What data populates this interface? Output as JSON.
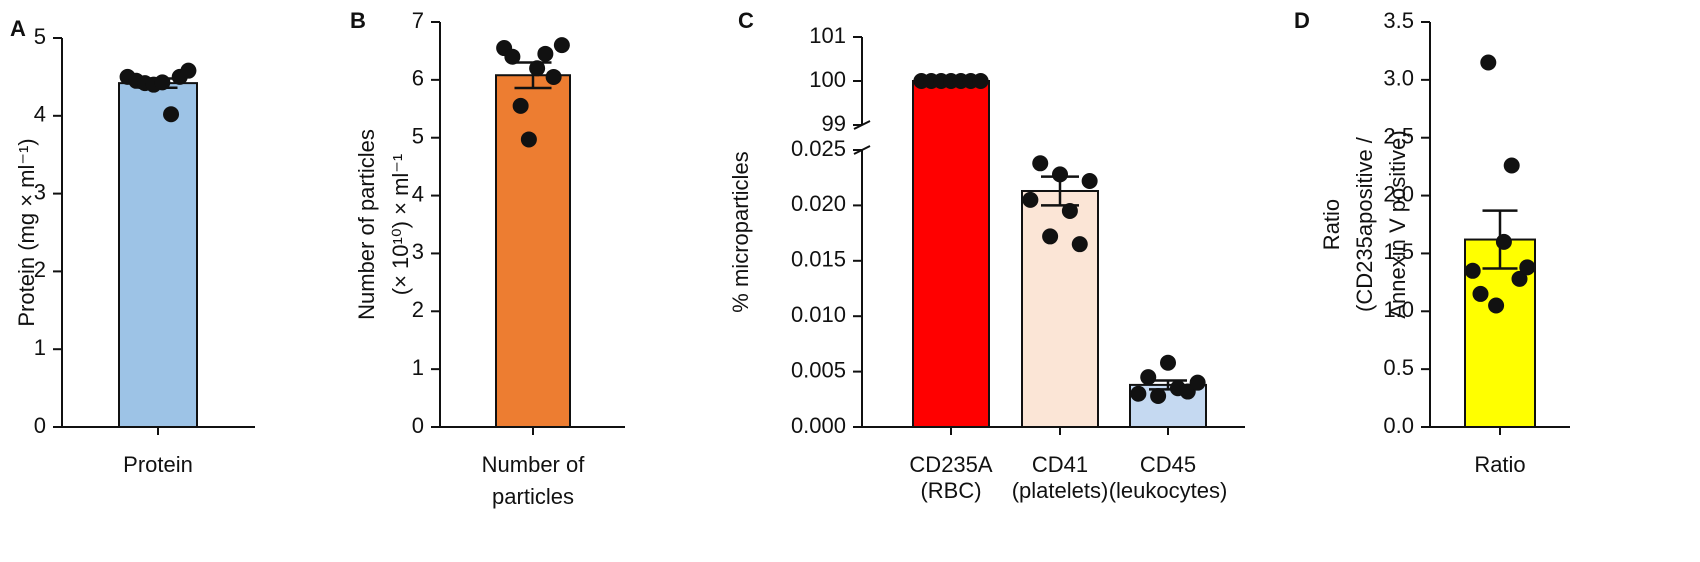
{
  "chart_data": [
    {
      "type": "bar",
      "panel": "A",
      "ylabel": [
        "Protein (mg × ml⁻¹)"
      ],
      "categories": [
        "Protein"
      ],
      "values": [
        4.42
      ],
      "errors": [
        0.06
      ],
      "points": [
        [
          4.5,
          4.45,
          4.42,
          4.4,
          4.43,
          4.02,
          4.5,
          4.58
        ]
      ],
      "colors": [
        "#9dc3e6"
      ],
      "ylim": [
        0,
        5
      ],
      "yticks": [
        0,
        1,
        2,
        3,
        4,
        5
      ]
    },
    {
      "type": "bar",
      "panel": "B",
      "ylabel": [
        "Number of particles",
        "(× 10¹⁰) × ml⁻¹"
      ],
      "categories": [
        "Number of particles"
      ],
      "values": [
        6.08
      ],
      "errors": [
        0.22
      ],
      "points": [
        [
          6.55,
          6.4,
          5.55,
          4.97,
          6.2,
          6.45,
          6.05,
          6.6
        ]
      ],
      "colors": [
        "#ed7d31"
      ],
      "ylim": [
        0,
        7
      ],
      "yticks": [
        0,
        1,
        2,
        3,
        4,
        5,
        6,
        7
      ]
    },
    {
      "type": "bar",
      "panel": "C",
      "ylabel": [
        "% microparticles"
      ],
      "categories": [
        "CD235A",
        "CD41",
        "CD45"
      ],
      "category_notes": [
        "(RBC)",
        "(platelets)",
        "(leukocytes)"
      ],
      "values": [
        100,
        0.0213,
        0.0038
      ],
      "errors": [
        0,
        0.0013,
        0.0004
      ],
      "points": [
        [
          100,
          100,
          100,
          100,
          100,
          100,
          100
        ],
        [
          0.0205,
          0.0238,
          0.0172,
          0.0228,
          0.0195,
          0.0165,
          0.0222
        ],
        [
          0.003,
          0.0045,
          0.0028,
          0.0058,
          0.0035,
          0.0032,
          0.004
        ]
      ],
      "colors": [
        "#ff0000",
        "#fbe5d6",
        "#c5d9f1"
      ],
      "y_segments": [
        {
          "ylim": [
            0,
            0.025
          ],
          "yticks": [
            {
              "value": 0,
              "label": "0.000"
            },
            {
              "value": 0.005,
              "label": "0.005"
            },
            {
              "value": 0.01,
              "label": "0.010"
            },
            {
              "value": 0.015,
              "label": "0.015"
            },
            {
              "value": 0.02,
              "label": "0.020"
            },
            {
              "value": 0.025,
              "label": "0.025"
            }
          ]
        },
        {
          "ylim": [
            99,
            101
          ],
          "yticks": [
            99,
            100,
            101
          ]
        }
      ]
    },
    {
      "type": "bar",
      "panel": "D",
      "ylabel": [
        "Ratio",
        "(CD235apositive /",
        "Annexin V positive)"
      ],
      "categories": [
        "Ratio"
      ],
      "values": [
        1.62
      ],
      "errors": [
        0.25
      ],
      "points": [
        [
          1.35,
          1.15,
          3.15,
          1.05,
          1.6,
          2.26,
          1.28,
          1.38
        ]
      ],
      "colors": [
        "#ffff00"
      ],
      "ylim": [
        0,
        3.5
      ],
      "yticks": [
        {
          "value": 0,
          "label": "0.0"
        },
        {
          "value": 0.5,
          "label": "0.5"
        },
        {
          "value": 1,
          "label": "1.0"
        },
        {
          "value": 1.5,
          "label": "1.5"
        },
        {
          "value": 2,
          "label": "2.0"
        },
        {
          "value": 2.5,
          "label": "2.5"
        },
        {
          "value": 3,
          "label": "3.0"
        },
        {
          "value": 3.5,
          "label": "3.5"
        }
      ]
    }
  ]
}
